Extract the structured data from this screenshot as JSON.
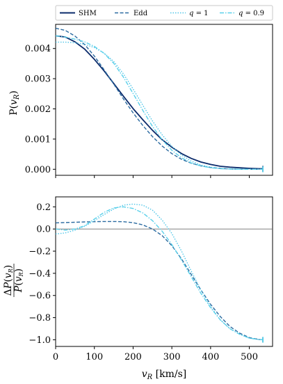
{
  "chart_data": [
    {
      "type": "line",
      "ylabel": "P(v_R)",
      "xlim": [
        0,
        560
      ],
      "ylim": [
        -0.0002,
        0.0048
      ],
      "yticks": [
        0.0,
        0.001,
        0.002,
        0.003,
        0.004
      ],
      "ytick_labels": [
        "0.000",
        "0.001",
        "0.002",
        "0.003",
        "0.004"
      ],
      "xticks": [
        0,
        100,
        200,
        300,
        400,
        500
      ],
      "grid": false,
      "legend": {
        "placement": "top, above plots",
        "entries": [
          "SHM",
          "Edd",
          "q = 1",
          "q = 0.9"
        ]
      },
      "series": [
        {
          "name": "SHM",
          "color": "#0b2b6b",
          "style": "solid",
          "x": [
            0,
            25,
            50,
            75,
            100,
            125,
            150,
            175,
            200,
            225,
            250,
            275,
            300,
            325,
            350,
            375,
            400,
            425,
            450,
            475,
            500,
            525,
            535
          ],
          "y": [
            0.00442,
            0.00438,
            0.00422,
            0.00398,
            0.00364,
            0.00326,
            0.00284,
            0.00242,
            0.00201,
            0.00164,
            0.00129,
            0.00098,
            0.00073,
            0.00052,
            0.00036,
            0.00024,
            0.00016,
            0.0001,
            7e-05,
            5e-05,
            3e-05,
            2e-05,
            2e-05
          ]
        },
        {
          "name": "Edd",
          "color": "#2a6aa0",
          "style": "dashed",
          "x": [
            0,
            25,
            50,
            75,
            100,
            125,
            150,
            175,
            200,
            225,
            250,
            275,
            300,
            325,
            350,
            375,
            400,
            425,
            450,
            475,
            500,
            525,
            535
          ],
          "y": [
            0.00467,
            0.0046,
            0.00441,
            0.00413,
            0.00375,
            0.0033,
            0.00282,
            0.00233,
            0.00187,
            0.00145,
            0.00108,
            0.00077,
            0.00052,
            0.00033,
            0.0002,
            0.00011,
            6e-05,
            3e-05,
            1e-05,
            0.0,
            0.0,
            0.0,
            0.0
          ]
        },
        {
          "name": "q = 1",
          "color": "#4fc6e8",
          "style": "dotted",
          "x": [
            0,
            25,
            50,
            75,
            100,
            125,
            150,
            175,
            200,
            225,
            250,
            275,
            300,
            325,
            350,
            375,
            400,
            425,
            450,
            475,
            500,
            525,
            535
          ],
          "y": [
            0.00421,
            0.00421,
            0.00419,
            0.00414,
            0.00403,
            0.00385,
            0.00357,
            0.00316,
            0.00266,
            0.00212,
            0.0016,
            0.00114,
            0.00076,
            0.00047,
            0.00027,
            0.00014,
            7e-05,
            3e-05,
            1e-05,
            0.0,
            0.0,
            0.0,
            0.0
          ]
        },
        {
          "name": "q = 0.9",
          "color": "#5ad0ea",
          "style": "dashdot",
          "x": [
            0,
            25,
            50,
            75,
            100,
            125,
            150,
            175,
            200,
            225,
            250,
            275,
            300,
            325,
            350,
            375,
            400,
            425,
            450,
            475,
            500,
            525,
            535
          ],
          "y": [
            0.00442,
            0.00438,
            0.00431,
            0.00422,
            0.00407,
            0.00384,
            0.00351,
            0.00305,
            0.00251,
            0.00195,
            0.00142,
            0.00098,
            0.00063,
            0.00038,
            0.00021,
            0.00011,
            5e-05,
            2e-05,
            1e-05,
            0.0,
            0.0,
            0.0,
            0.0
          ]
        }
      ]
    },
    {
      "type": "line",
      "xlabel": "v_R [km/s]",
      "ylabel": "ΔP(v_R) / P(v_R)",
      "xlim": [
        0,
        560
      ],
      "ylim": [
        -1.06,
        0.29
      ],
      "xticks": [
        0,
        100,
        200,
        300,
        400,
        500
      ],
      "xtick_labels": [
        "0",
        "100",
        "200",
        "300",
        "400",
        "500"
      ],
      "yticks": [
        0.2,
        0.0,
        -0.2,
        -0.4,
        -0.6,
        -0.8,
        -1.0
      ],
      "ytick_labels": [
        "0.2",
        "0.0",
        "−0.2",
        "−0.4",
        "−0.6",
        "−0.8",
        "−1.0"
      ],
      "reference_line_y": 0.0,
      "grid": false,
      "series": [
        {
          "name": "Edd",
          "color": "#2a6aa0",
          "style": "dashed",
          "x": [
            0,
            25,
            50,
            75,
            100,
            125,
            150,
            175,
            200,
            225,
            250,
            275,
            300,
            325,
            350,
            375,
            400,
            425,
            450,
            475,
            500,
            525,
            535
          ],
          "y": [
            0.055,
            0.058,
            0.061,
            0.064,
            0.066,
            0.068,
            0.068,
            0.066,
            0.057,
            0.037,
            0.0,
            -0.06,
            -0.15,
            -0.27,
            -0.41,
            -0.55,
            -0.68,
            -0.79,
            -0.88,
            -0.94,
            -0.98,
            -0.997,
            -1.0
          ]
        },
        {
          "name": "q = 1",
          "color": "#4fc6e8",
          "style": "dotted",
          "x": [
            0,
            25,
            50,
            75,
            100,
            125,
            150,
            175,
            200,
            225,
            250,
            275,
            300,
            325,
            350,
            375,
            400,
            425,
            450,
            475,
            500,
            525,
            535
          ],
          "y": [
            -0.045,
            -0.035,
            -0.01,
            0.025,
            0.075,
            0.13,
            0.18,
            0.215,
            0.225,
            0.215,
            0.17,
            0.08,
            -0.04,
            -0.2,
            -0.38,
            -0.55,
            -0.7,
            -0.82,
            -0.9,
            -0.95,
            -0.985,
            -0.998,
            -1.0
          ]
        },
        {
          "name": "q = 0.9",
          "color": "#5ad0ea",
          "style": "dashdot",
          "x": [
            0,
            25,
            50,
            75,
            100,
            125,
            150,
            175,
            200,
            225,
            250,
            275,
            300,
            325,
            350,
            375,
            400,
            425,
            450,
            475,
            500,
            525,
            535
          ],
          "y": [
            0.0,
            -0.01,
            0.0,
            0.03,
            0.09,
            0.15,
            0.19,
            0.2,
            0.185,
            0.145,
            0.075,
            -0.02,
            -0.14,
            -0.28,
            -0.43,
            -0.58,
            -0.71,
            -0.82,
            -0.9,
            -0.95,
            -0.985,
            -0.998,
            -1.0
          ]
        }
      ]
    }
  ]
}
